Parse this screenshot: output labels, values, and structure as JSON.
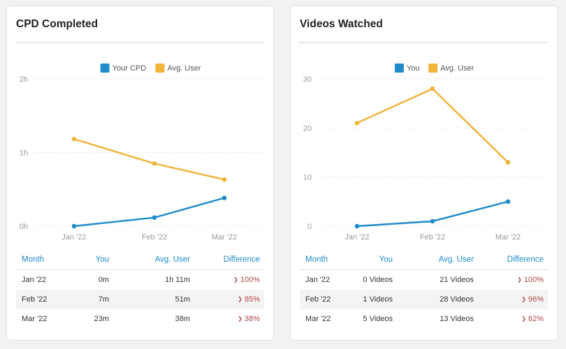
{
  "colors": {
    "primary": "#1f8cc9",
    "secondary": "#f0b43c",
    "negative": "#b04545",
    "axis_text": "#999999",
    "grid": "#e4e4e4"
  },
  "cards": [
    {
      "title": "CPD Completed",
      "table": {
        "headers": [
          "Month",
          "You",
          "Avg. User",
          "Difference"
        ],
        "rows": [
          {
            "month": "Jan '22",
            "you": "0m",
            "avg": "1h 11m",
            "diff": "100%",
            "direction": "down"
          },
          {
            "month": "Feb '22",
            "you": "7m",
            "avg": "51m",
            "diff": "85%",
            "direction": "down"
          },
          {
            "month": "Mar '22",
            "you": "23m",
            "avg": "38m",
            "diff": "38%",
            "direction": "down"
          }
        ]
      }
    },
    {
      "title": "Videos Watched",
      "table": {
        "headers": [
          "Month",
          "You",
          "Avg. User",
          "Difference"
        ],
        "rows": [
          {
            "month": "Jan '22",
            "you": "0 Videos",
            "avg": "21 Videos",
            "diff": "100%",
            "direction": "down"
          },
          {
            "month": "Feb '22",
            "you": "1 Videos",
            "avg": "28 Videos",
            "diff": "96%",
            "direction": "down"
          },
          {
            "month": "Mar '22",
            "you": "5 Videos",
            "avg": "13 Videos",
            "diff": "62%",
            "direction": "down"
          }
        ]
      }
    }
  ],
  "chart_data": [
    {
      "type": "line",
      "title": "CPD Completed",
      "unit": "minutes",
      "categories": [
        "Jan '22",
        "Feb '22",
        "Mar '22"
      ],
      "series": [
        {
          "name": "Your CPD",
          "color": "#1f8cc9",
          "values": [
            0,
            7,
            23
          ]
        },
        {
          "name": "Avg. User",
          "color": "#f0b43c",
          "values": [
            71,
            51,
            38
          ]
        }
      ],
      "ylim": [
        0,
        120
      ],
      "yticks": [
        0,
        60,
        120
      ],
      "ytick_labels": [
        "0h",
        "1h",
        "2h"
      ],
      "legend": "top-center",
      "grid": true
    },
    {
      "type": "line",
      "title": "Videos Watched",
      "unit": "videos",
      "categories": [
        "Jan '22",
        "Feb '22",
        "Mar '22"
      ],
      "series": [
        {
          "name": "You",
          "color": "#1f8cc9",
          "values": [
            0,
            1,
            5
          ]
        },
        {
          "name": "Avg. User",
          "color": "#f0b43c",
          "values": [
            21,
            28,
            13
          ]
        }
      ],
      "ylim": [
        0,
        30
      ],
      "yticks": [
        0,
        10,
        20,
        30
      ],
      "ytick_labels": [
        "0",
        "10",
        "20",
        "30"
      ],
      "legend": "top-center",
      "grid": true
    }
  ]
}
